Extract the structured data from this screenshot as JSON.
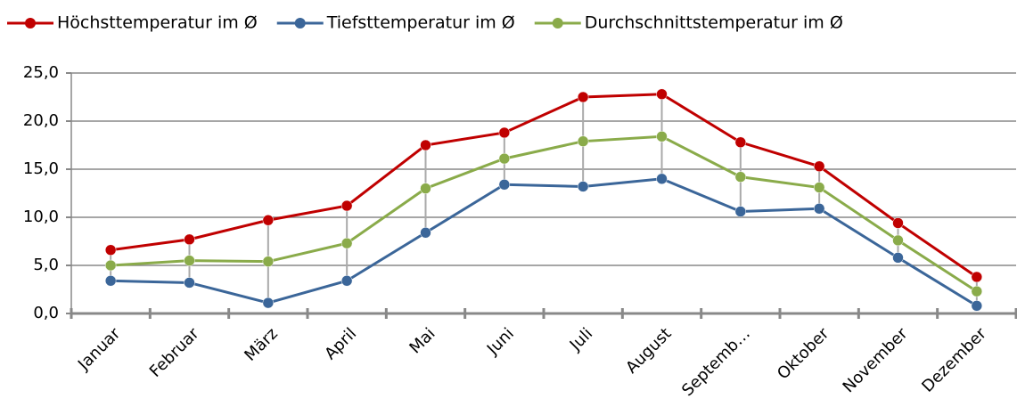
{
  "chart_data": {
    "type": "line",
    "categories": [
      "Januar",
      "Februar",
      "März",
      "April",
      "Mai",
      "Juni",
      "Juli",
      "August",
      "Septemb…",
      "Oktober",
      "November",
      "Dezember"
    ],
    "series": [
      {
        "name": "Höchsttemperatur im Ø",
        "color": "#c00000",
        "values": [
          6.6,
          7.7,
          9.7,
          11.2,
          17.5,
          18.8,
          22.5,
          22.8,
          17.8,
          15.3,
          9.4,
          3.8
        ]
      },
      {
        "name": "Tiefsttemperatur im Ø",
        "color": "#3b6699",
        "values": [
          3.4,
          3.2,
          1.1,
          3.4,
          8.4,
          13.4,
          13.2,
          14.0,
          10.6,
          10.9,
          5.8,
          0.8
        ]
      },
      {
        "name": "Durchschnittstemperatur im Ø",
        "color": "#8aab4a",
        "values": [
          5.0,
          5.5,
          5.4,
          7.3,
          13.0,
          16.1,
          17.9,
          18.4,
          14.2,
          13.1,
          7.6,
          2.3
        ]
      }
    ],
    "ylim": [
      0,
      25
    ],
    "yticks": [
      {
        "value": 0,
        "label": "0,0"
      },
      {
        "value": 5,
        "label": "5,0"
      },
      {
        "value": 10,
        "label": "10,0"
      },
      {
        "value": 15,
        "label": "15,0"
      },
      {
        "value": 20,
        "label": "20,0"
      },
      {
        "value": 25,
        "label": "25,0"
      }
    ],
    "grid": true,
    "legend": "top",
    "high_low_lines": true
  }
}
